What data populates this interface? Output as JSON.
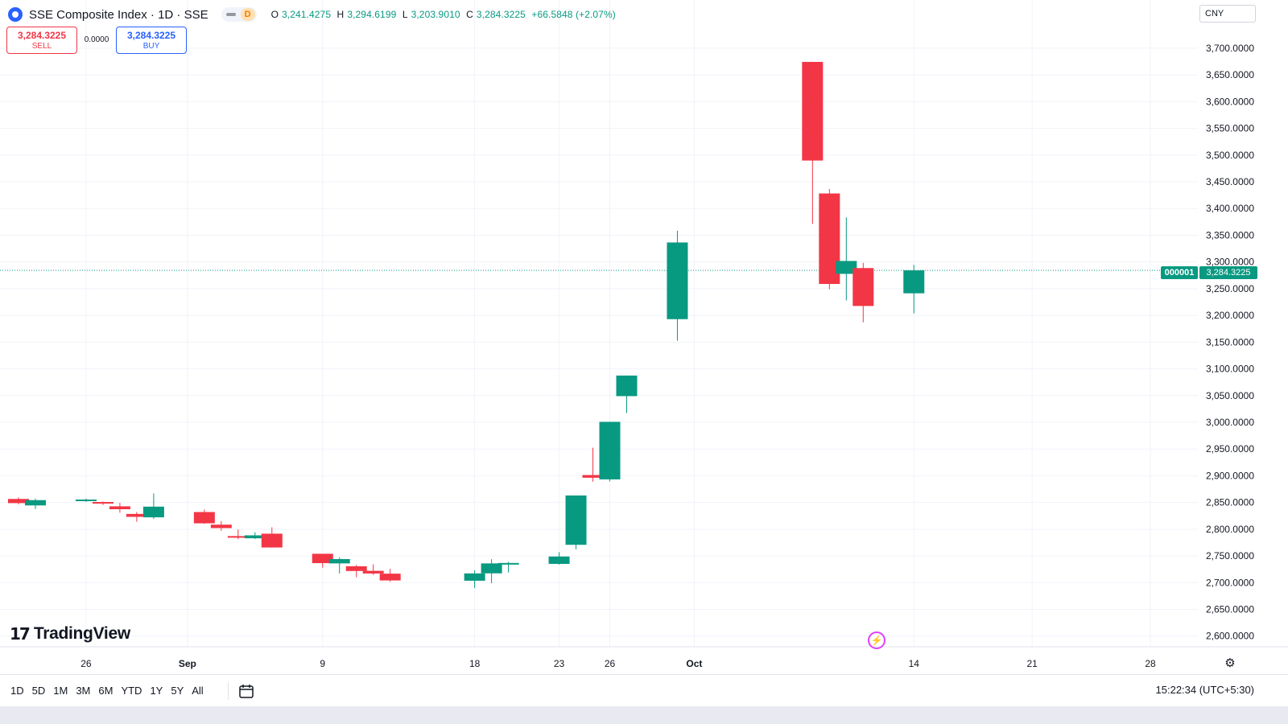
{
  "header": {
    "symbol_title": "SSE Composite Index · 1D · SSE",
    "interval_badge": "D",
    "ohlc": {
      "o_label": "O",
      "o_value": "3,241.4275",
      "h_label": "H",
      "h_value": "3,294.6199",
      "l_label": "L",
      "l_value": "3,203.9010",
      "c_label": "C",
      "c_value": "3,284.3225",
      "change": "+66.5848 (+2.07%)"
    }
  },
  "trade": {
    "sell_price": "3,284.3225",
    "sell_label": "SELL",
    "spread": "0.0000",
    "buy_price": "3,284.3225",
    "buy_label": "BUY"
  },
  "currency": "CNY",
  "price_tag": {
    "symbol": "000001",
    "value": "3,284.3225"
  },
  "branding": {
    "mark": "17",
    "name": "TradingView"
  },
  "toolbar": {
    "ranges": [
      "1D",
      "5D",
      "1M",
      "3M",
      "6M",
      "YTD",
      "1Y",
      "5Y",
      "All"
    ],
    "clock": "15:22:34 (UTC+5:30)"
  },
  "colors": {
    "up": "#089981",
    "down": "#f23645",
    "grid": "#f0f3fa",
    "text": "#131722"
  },
  "icons": [
    "symbol-logo-icon",
    "calendar-range-icon",
    "lightning-icon",
    "gear-icon"
  ],
  "chart_data": {
    "type": "candlestick",
    "title": "SSE Composite Index · 1D · SSE",
    "ylim": [
      2580,
      3730
    ],
    "y_ticks": [
      "2,600.0000",
      "2,650.0000",
      "2,700.0000",
      "2,750.0000",
      "2,800.0000",
      "2,850.0000",
      "2,900.0000",
      "2,950.0000",
      "3,000.0000",
      "3,050.0000",
      "3,100.0000",
      "3,150.0000",
      "3,200.0000",
      "3,250.0000",
      "3,300.0000",
      "3,350.0000",
      "3,400.0000",
      "3,450.0000",
      "3,500.0000",
      "3,550.0000",
      "3,600.0000",
      "3,650.0000",
      "3,700.0000"
    ],
    "y_tick_values": [
      2600,
      2650,
      2700,
      2750,
      2800,
      2850,
      2900,
      2950,
      3000,
      3050,
      3100,
      3150,
      3200,
      3250,
      3300,
      3350,
      3400,
      3450,
      3500,
      3550,
      3600,
      3650,
      3700
    ],
    "x_tick_labels": [
      "26",
      "Sep",
      "9",
      "18",
      "23",
      "26",
      "Oct",
      "14",
      "21",
      "28"
    ],
    "x_tick_dates": [
      "2024-08-26",
      "2024-09-01",
      "2024-09-09",
      "2024-09-18",
      "2024-09-23",
      "2024-09-26",
      "2024-10-01",
      "2024-10-14",
      "2024-10-21",
      "2024-10-28"
    ],
    "x_range": [
      "2024-08-22",
      "2024-11-01"
    ],
    "last_price": 3284.3225,
    "grid": true,
    "candles": [
      {
        "date": "2024-08-22",
        "open": 2856.6,
        "high": 2859.4,
        "low": 2846.7,
        "close": 2848.8
      },
      {
        "date": "2024-08-23",
        "open": 2844.5,
        "high": 2857.2,
        "low": 2837.7,
        "close": 2854.4
      },
      {
        "date": "2024-08-26",
        "open": 2854.1,
        "high": 2857.2,
        "low": 2851.0,
        "close": 2855.5
      },
      {
        "date": "2024-08-27",
        "open": 2850.9,
        "high": 2851.7,
        "low": 2845.2,
        "close": 2848.8
      },
      {
        "date": "2024-08-28",
        "open": 2842.8,
        "high": 2849.5,
        "low": 2830.8,
        "close": 2837.4
      },
      {
        "date": "2024-08-29",
        "open": 2828.6,
        "high": 2832.1,
        "low": 2813.7,
        "close": 2823.1
      },
      {
        "date": "2024-08-30",
        "open": 2822.2,
        "high": 2866.9,
        "low": 2819.3,
        "close": 2842.2
      },
      {
        "date": "2024-09-02",
        "open": 2832.1,
        "high": 2836.7,
        "low": 2810.0,
        "close": 2811.0
      },
      {
        "date": "2024-09-03",
        "open": 2808.5,
        "high": 2815.3,
        "low": 2797.1,
        "close": 2802.1
      },
      {
        "date": "2024-09-04",
        "open": 2787.1,
        "high": 2799.5,
        "low": 2781.3,
        "close": 2784.3
      },
      {
        "date": "2024-09-05",
        "open": 2783.0,
        "high": 2794.3,
        "low": 2781.6,
        "close": 2788.5
      },
      {
        "date": "2024-09-06",
        "open": 2791.6,
        "high": 2803.6,
        "low": 2765.4,
        "close": 2765.8
      },
      {
        "date": "2024-09-09",
        "open": 2754.0,
        "high": 2754.0,
        "low": 2728.0,
        "close": 2736.5
      },
      {
        "date": "2024-09-10",
        "open": 2736.0,
        "high": 2747.5,
        "low": 2717.1,
        "close": 2744.1
      },
      {
        "date": "2024-09-11",
        "open": 2730.7,
        "high": 2733.3,
        "low": 2710.1,
        "close": 2721.8
      },
      {
        "date": "2024-09-12",
        "open": 2722.1,
        "high": 2734.3,
        "low": 2714.4,
        "close": 2717.1
      },
      {
        "date": "2024-09-13",
        "open": 2716.8,
        "high": 2725.9,
        "low": 2701.6,
        "close": 2704.1
      },
      {
        "date": "2024-09-18",
        "open": 2703.6,
        "high": 2723.1,
        "low": 2689.7,
        "close": 2717.3
      },
      {
        "date": "2024-09-19",
        "open": 2717.4,
        "high": 2743.8,
        "low": 2698.8,
        "close": 2736.0
      },
      {
        "date": "2024-09-20",
        "open": 2733.8,
        "high": 2738.9,
        "low": 2719.1,
        "close": 2736.8
      },
      {
        "date": "2024-09-23",
        "open": 2735.1,
        "high": 2757.0,
        "low": 2733.8,
        "close": 2748.9
      },
      {
        "date": "2024-09-24",
        "open": 2770.8,
        "high": 2863.1,
        "low": 2762.4,
        "close": 2863.1
      },
      {
        "date": "2024-09-25",
        "open": 2901.4,
        "high": 2952.5,
        "low": 2889.0,
        "close": 2896.3
      },
      {
        "date": "2024-09-26",
        "open": 2893.2,
        "high": 3000.9,
        "low": 2889.5,
        "close": 3000.9
      },
      {
        "date": "2024-09-27",
        "open": 3049.0,
        "high": 3087.5,
        "low": 3017.4,
        "close": 3087.5
      },
      {
        "date": "2024-09-30",
        "open": 3193.0,
        "high": 3358.6,
        "low": 3152.8,
        "close": 3336.5
      },
      {
        "date": "2024-10-08",
        "open": 3674.4,
        "high": 3674.4,
        "low": 3371.1,
        "close": 3489.8
      },
      {
        "date": "2024-10-09",
        "open": 3428.2,
        "high": 3436.6,
        "low": 3248.9,
        "close": 3258.9
      },
      {
        "date": "2024-10-10",
        "open": 3277.8,
        "high": 3383.4,
        "low": 3228.1,
        "close": 3301.9
      },
      {
        "date": "2024-10-11",
        "open": 3288.6,
        "high": 3298.4,
        "low": 3187.2,
        "close": 3217.7
      },
      {
        "date": "2024-10-14",
        "open": 3241.4,
        "high": 3294.6,
        "low": 3203.9,
        "close": 3284.3
      }
    ]
  }
}
